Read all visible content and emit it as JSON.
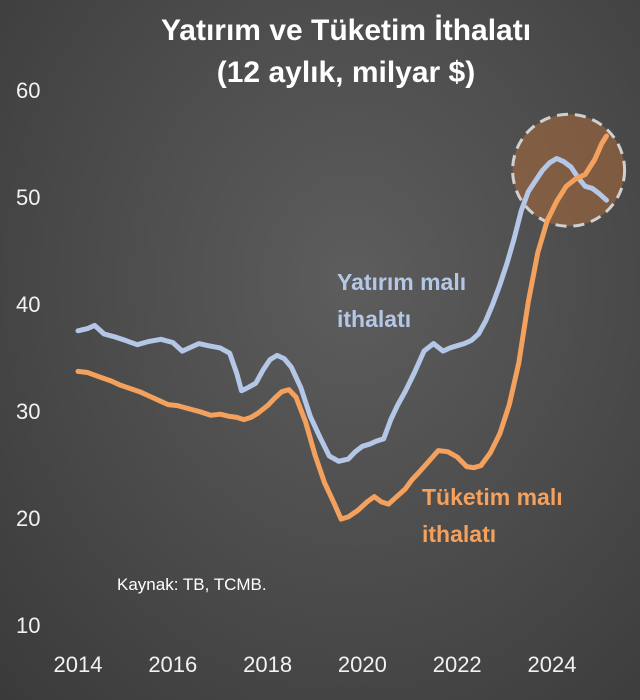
{
  "chart_data": {
    "type": "line",
    "title": "Yatırım ve Tüketim İthalatı",
    "subtitle": "(12 aylık, milyar $)",
    "xlabel": "",
    "ylabel": "",
    "xlim": [
      2014,
      2025.3
    ],
    "ylim": [
      10,
      60
    ],
    "x_ticks": [
      "2014",
      "2016",
      "2018",
      "2020",
      "2022",
      "2024"
    ],
    "y_ticks": [
      "10",
      "20",
      "30",
      "40",
      "50",
      "60"
    ],
    "grid": false,
    "source": "Kaynak: TB, TCMB.",
    "highlight_circle": {
      "center": [
        2024.35,
        52.5
      ],
      "note": "dashed circle around latest values"
    },
    "series": [
      {
        "name": "Yatırım malı ithalatı",
        "label_lines": [
          "Yatırım malı",
          "ithalatı"
        ],
        "color": "#b4c7e7",
        "x": [
          2014.0,
          2014.2,
          2014.35,
          2014.55,
          2014.8,
          2015.0,
          2015.25,
          2015.5,
          2015.75,
          2016.0,
          2016.2,
          2016.35,
          2016.55,
          2016.75,
          2017.0,
          2017.2,
          2017.35,
          2017.45,
          2017.55,
          2017.75,
          2017.9,
          2018.05,
          2018.2,
          2018.35,
          2018.5,
          2018.7,
          2018.9,
          2019.1,
          2019.3,
          2019.5,
          2019.7,
          2019.85,
          2020.0,
          2020.15,
          2020.3,
          2020.45,
          2020.6,
          2020.75,
          2020.9,
          2021.1,
          2021.3,
          2021.5,
          2021.7,
          2021.85,
          2022.0,
          2022.15,
          2022.3,
          2022.45,
          2022.6,
          2022.75,
          2022.9,
          2023.05,
          2023.2,
          2023.35,
          2023.5,
          2023.65,
          2023.8,
          2023.95,
          2024.1,
          2024.25,
          2024.4,
          2024.55,
          2024.7,
          2024.85,
          2025.0,
          2025.15
        ],
        "values": [
          37.5,
          37.7,
          38.0,
          37.2,
          36.9,
          36.6,
          36.2,
          36.5,
          36.7,
          36.4,
          35.6,
          35.9,
          36.3,
          36.1,
          35.9,
          35.4,
          33.5,
          31.9,
          32.1,
          32.6,
          33.8,
          34.8,
          35.2,
          34.9,
          34.1,
          32.2,
          29.5,
          27.6,
          25.8,
          25.3,
          25.5,
          26.2,
          26.7,
          26.9,
          27.2,
          27.4,
          29.2,
          30.6,
          31.8,
          33.6,
          35.6,
          36.3,
          35.6,
          35.9,
          36.1,
          36.3,
          36.6,
          37.2,
          38.4,
          40.0,
          41.8,
          43.8,
          46.1,
          48.7,
          50.5,
          51.5,
          52.5,
          53.2,
          53.6,
          53.3,
          52.8,
          51.8,
          51.0,
          50.8,
          50.3,
          49.7
        ]
      },
      {
        "name": "Tüketim malı ithalatı",
        "label_lines": [
          "Tüketim malı",
          "ithalatı"
        ],
        "color": "#f4a15e",
        "x": [
          2014.0,
          2014.2,
          2014.45,
          2014.7,
          2014.9,
          2015.1,
          2015.3,
          2015.5,
          2015.7,
          2015.9,
          2016.1,
          2016.35,
          2016.6,
          2016.8,
          2017.0,
          2017.2,
          2017.35,
          2017.5,
          2017.65,
          2017.8,
          2018.0,
          2018.15,
          2018.3,
          2018.45,
          2018.6,
          2018.8,
          2019.0,
          2019.2,
          2019.4,
          2019.55,
          2019.7,
          2019.9,
          2020.1,
          2020.25,
          2020.4,
          2020.55,
          2020.7,
          2020.9,
          2021.05,
          2021.2,
          2021.4,
          2021.6,
          2021.8,
          2022.0,
          2022.2,
          2022.35,
          2022.5,
          2022.7,
          2022.9,
          2023.1,
          2023.3,
          2023.5,
          2023.7,
          2023.9,
          2024.1,
          2024.3,
          2024.5,
          2024.7,
          2024.9,
          2025.05,
          2025.15
        ],
        "values": [
          33.7,
          33.6,
          33.2,
          32.8,
          32.4,
          32.1,
          31.8,
          31.4,
          31.0,
          30.6,
          30.5,
          30.2,
          29.9,
          29.6,
          29.7,
          29.5,
          29.4,
          29.2,
          29.4,
          29.8,
          30.5,
          31.2,
          31.8,
          32.0,
          31.3,
          29.0,
          25.9,
          23.3,
          21.4,
          19.9,
          20.1,
          20.7,
          21.5,
          22.0,
          21.5,
          21.3,
          21.9,
          22.7,
          23.6,
          24.3,
          25.3,
          26.3,
          26.2,
          25.7,
          24.8,
          24.7,
          24.9,
          26.1,
          27.9,
          30.6,
          34.5,
          40.2,
          44.8,
          47.8,
          49.6,
          51.0,
          51.7,
          52.1,
          53.5,
          55.0,
          55.7
        ]
      }
    ]
  }
}
